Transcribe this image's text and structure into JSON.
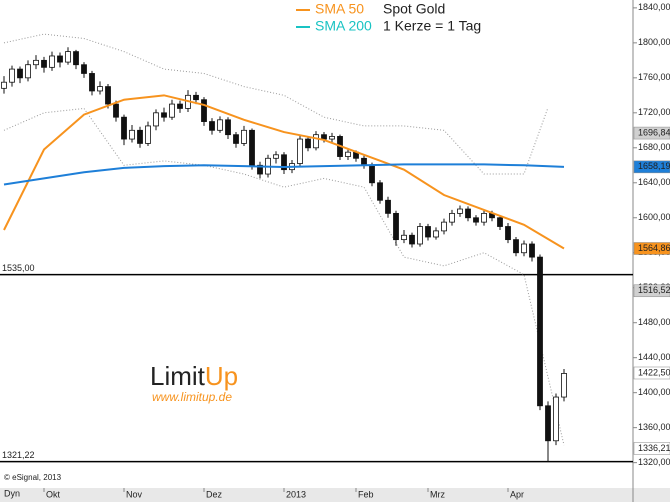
{
  "chart_data": {
    "type": "candlestick",
    "title": "Spot Gold",
    "subtitle": "1 Kerze = 1 Tag",
    "categories": [
      null,
      null,
      null,
      null,
      null,
      "Okt",
      null,
      null,
      null,
      null,
      null,
      null,
      null,
      null,
      null,
      "Nov",
      null,
      null,
      null,
      null,
      null,
      null,
      null,
      null,
      null,
      "Dez",
      null,
      null,
      null,
      null,
      null,
      null,
      null,
      null,
      null,
      "2013",
      null,
      null,
      null,
      null,
      null,
      null,
      null,
      null,
      "Feb",
      null,
      null,
      null,
      null,
      null,
      null,
      null,
      null,
      "Mrz",
      null,
      null,
      null,
      null,
      null,
      null,
      null,
      null,
      null,
      "Apr",
      null,
      null,
      null,
      null,
      null,
      null,
      null
    ],
    "open": [
      1748,
      1755,
      1770,
      1760,
      1775,
      1780,
      1772,
      1785,
      1778,
      1790,
      1775,
      1765,
      1745,
      1750,
      1730,
      1715,
      1690,
      1700,
      1685,
      1705,
      1720,
      1715,
      1730,
      1725,
      1740,
      1735,
      1710,
      1700,
      1712,
      1695,
      1685,
      1700,
      1660,
      1650,
      1668,
      1672,
      1655,
      1662,
      1690,
      1680,
      1695,
      1690,
      1693,
      1670,
      1675,
      1668,
      1660,
      1640,
      1620,
      1605,
      1575,
      1580,
      1570,
      1590,
      1578,
      1585,
      1595,
      1605,
      1610,
      1600,
      1595,
      1605,
      1600,
      1590,
      1575,
      1560,
      1570,
      1555,
      1385,
      1345,
      1395
    ],
    "high": [
      1762,
      1774,
      1773,
      1780,
      1786,
      1784,
      1790,
      1789,
      1795,
      1792,
      1778,
      1768,
      1756,
      1753,
      1734,
      1718,
      1706,
      1704,
      1710,
      1724,
      1726,
      1735,
      1734,
      1746,
      1744,
      1738,
      1714,
      1716,
      1715,
      1698,
      1705,
      1702,
      1664,
      1672,
      1676,
      1675,
      1666,
      1694,
      1693,
      1699,
      1698,
      1697,
      1695,
      1679,
      1677,
      1671,
      1663,
      1643,
      1624,
      1608,
      1586,
      1583,
      1594,
      1593,
      1589,
      1599,
      1609,
      1614,
      1613,
      1603,
      1609,
      1608,
      1603,
      1594,
      1578,
      1574,
      1573,
      1558,
      1390,
      1399,
      1427
    ],
    "low": [
      1742,
      1750,
      1754,
      1756,
      1770,
      1766,
      1768,
      1772,
      1775,
      1770,
      1760,
      1740,
      1741,
      1725,
      1710,
      1683,
      1686,
      1680,
      1682,
      1700,
      1710,
      1712,
      1720,
      1721,
      1730,
      1705,
      1695,
      1697,
      1690,
      1680,
      1682,
      1655,
      1645,
      1646,
      1662,
      1650,
      1651,
      1658,
      1676,
      1677,
      1686,
      1686,
      1666,
      1666,
      1664,
      1656,
      1636,
      1616,
      1600,
      1568,
      1571,
      1566,
      1567,
      1574,
      1575,
      1581,
      1591,
      1601,
      1596,
      1591,
      1591,
      1596,
      1586,
      1571,
      1556,
      1556,
      1550,
      1380,
      1321.22,
      1340,
      1390
    ],
    "close": [
      1755,
      1770,
      1760,
      1775,
      1780,
      1772,
      1785,
      1778,
      1790,
      1775,
      1765,
      1745,
      1750,
      1730,
      1715,
      1690,
      1700,
      1685,
      1705,
      1720,
      1715,
      1730,
      1725,
      1740,
      1735,
      1710,
      1700,
      1712,
      1695,
      1685,
      1700,
      1660,
      1650,
      1668,
      1672,
      1655,
      1662,
      1690,
      1680,
      1695,
      1690,
      1693,
      1670,
      1675,
      1668,
      1660,
      1640,
      1620,
      1605,
      1575,
      1580,
      1570,
      1590,
      1578,
      1585,
      1595,
      1605,
      1610,
      1600,
      1595,
      1605,
      1600,
      1590,
      1575,
      1560,
      1570,
      1555,
      1385,
      1345,
      1395,
      1422
    ],
    "up_color": "#ffffff",
    "down_color": "#111111",
    "series": [
      {
        "name": "SMA 50",
        "color": "#f7931e",
        "legend_color": "#f7931e",
        "x": [
          0,
          5,
          10,
          15,
          20,
          25,
          30,
          35,
          40,
          45,
          50,
          55,
          60,
          65,
          70
        ],
        "values": [
          1586,
          1678,
          1718,
          1735,
          1740,
          1729,
          1712,
          1698,
          1689,
          1672,
          1655,
          1626,
          1609,
          1592,
          1564.86
        ]
      },
      {
        "name": "SMA 200",
        "color": "#1e7fd8",
        "legend_color": "#19c3c3",
        "x": [
          0,
          5,
          10,
          15,
          20,
          25,
          30,
          35,
          40,
          45,
          50,
          55,
          60,
          65,
          70
        ],
        "values": [
          1638,
          1645,
          1652,
          1657,
          1659,
          1660,
          1659,
          1658,
          1659,
          1660,
          1661,
          1661,
          1661,
          1660,
          1658.19
        ]
      }
    ],
    "bands": [
      {
        "color": "#999999",
        "x": [
          0,
          5,
          10,
          15,
          20,
          25,
          30,
          35,
          40,
          45,
          50,
          55,
          60,
          65,
          68
        ],
        "values": [
          1800,
          1810,
          1805,
          1790,
          1770,
          1765,
          1750,
          1740,
          1715,
          1705,
          1705,
          1700,
          1650,
          1650,
          1726
        ]
      },
      {
        "color": "#999999",
        "x": [
          0,
          5,
          10,
          15,
          20,
          25,
          30,
          35,
          40,
          45,
          50,
          55,
          60,
          65,
          70
        ],
        "values": [
          1700,
          1720,
          1725,
          1660,
          1665,
          1660,
          1650,
          1635,
          1645,
          1635,
          1555,
          1545,
          1560,
          1535,
          1340
        ]
      }
    ],
    "ylim": [
      1291,
      1849
    ],
    "yticks": [
      {
        "value": 1320,
        "label": "1320,00"
      },
      {
        "value": 1360,
        "label": "1360,00"
      },
      {
        "value": 1400,
        "label": "1400,00"
      },
      {
        "value": 1440,
        "label": "1440,00"
      },
      {
        "value": 1480,
        "label": "1480,00"
      },
      {
        "value": 1520,
        "label": "1520,00"
      },
      {
        "value": 1560,
        "label": "1560,00"
      },
      {
        "value": 1600,
        "label": "1600,00"
      },
      {
        "value": 1640,
        "label": "1640,00"
      },
      {
        "value": 1680,
        "label": "1680,00"
      },
      {
        "value": 1720,
        "label": "1720,00"
      },
      {
        "value": 1760,
        "label": "1760,00"
      },
      {
        "value": 1800,
        "label": "1800,00"
      },
      {
        "value": 1840,
        "label": "1840,00"
      }
    ],
    "levels": [
      {
        "value": 1535,
        "label": "1535,00"
      },
      {
        "value": 1321.22,
        "label": "1321,22"
      }
    ],
    "price_tags": [
      {
        "value": 1696.84,
        "label": "1696,84",
        "color": "#d0d0d0"
      },
      {
        "value": 1658.19,
        "label": "1658,19",
        "color": "#1e7fd8"
      },
      {
        "value": 1564.86,
        "label": "1564,86",
        "color": "#f7931e"
      },
      {
        "value": 1516.52,
        "label": "1516,52",
        "color": "#d0d0d0"
      },
      {
        "value": 1422.5,
        "label": "1422,50",
        "color": "#ffffff"
      },
      {
        "value": 1336.21,
        "label": "1336,21",
        "color": "#ffffff"
      }
    ],
    "logo": {
      "name_a": "Limit",
      "name_b": "Up",
      "url": "www.limitup.de"
    },
    "source": "© eSignal, 2013",
    "mode": "Dyn"
  }
}
